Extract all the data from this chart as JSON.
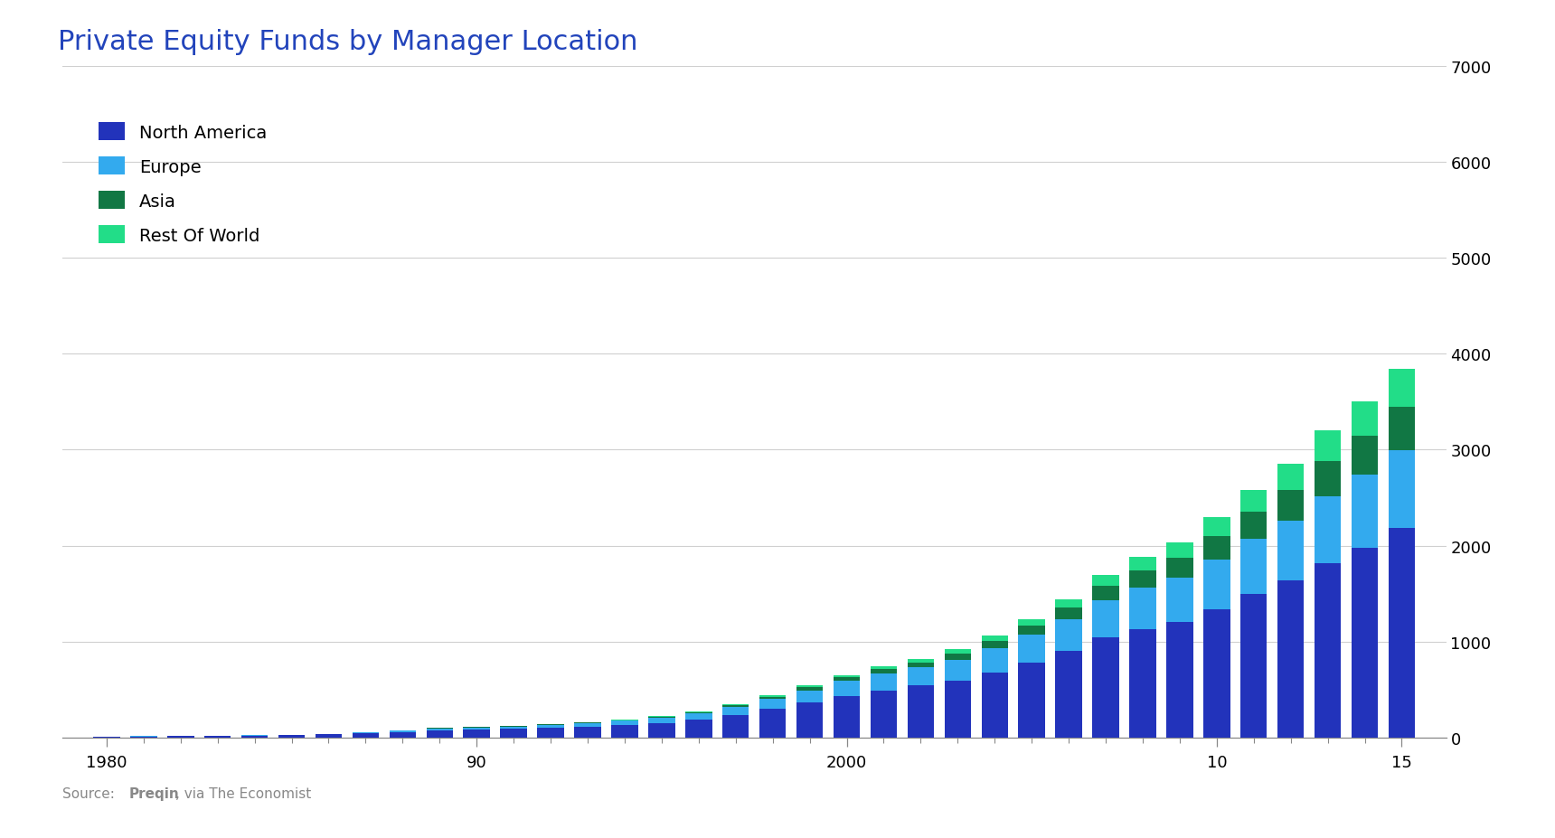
{
  "title": "Private Equity Funds by Manager Location",
  "source_normal": "Source: ",
  "source_bold": "Preqin",
  "source_normal2": ", via The Economist",
  "years": [
    1980,
    1981,
    1982,
    1983,
    1984,
    1985,
    1986,
    1987,
    1988,
    1989,
    1990,
    1991,
    1992,
    1993,
    1994,
    1995,
    1996,
    1997,
    1998,
    1999,
    2000,
    2001,
    2002,
    2003,
    2004,
    2005,
    2006,
    2007,
    2008,
    2009,
    2010,
    2011,
    2012,
    2013,
    2014,
    2015
  ],
  "north_america": [
    8,
    10,
    12,
    15,
    18,
    22,
    30,
    42,
    55,
    72,
    80,
    88,
    98,
    110,
    128,
    150,
    185,
    235,
    295,
    360,
    430,
    490,
    540,
    595,
    680,
    780,
    900,
    1040,
    1130,
    1200,
    1340,
    1500,
    1640,
    1820,
    1980,
    2180
  ],
  "europe": [
    1,
    2,
    2,
    3,
    4,
    5,
    7,
    10,
    14,
    20,
    22,
    26,
    30,
    36,
    44,
    54,
    66,
    84,
    105,
    130,
    156,
    176,
    192,
    214,
    248,
    288,
    332,
    388,
    432,
    462,
    514,
    568,
    618,
    696,
    756,
    812
  ],
  "asia": [
    0,
    0,
    0,
    0,
    0,
    1,
    1,
    2,
    3,
    4,
    4,
    5,
    6,
    7,
    8,
    10,
    13,
    18,
    24,
    32,
    38,
    44,
    50,
    62,
    76,
    95,
    120,
    152,
    182,
    210,
    244,
    282,
    322,
    366,
    410,
    452
  ],
  "rest_of_world": [
    0,
    0,
    0,
    0,
    0,
    0,
    0,
    1,
    1,
    2,
    2,
    2,
    3,
    4,
    5,
    6,
    8,
    10,
    14,
    20,
    26,
    32,
    38,
    48,
    58,
    72,
    90,
    116,
    140,
    164,
    196,
    234,
    272,
    316,
    358,
    400
  ],
  "colors": {
    "north_america": "#2233bb",
    "europe": "#33aaee",
    "asia": "#117744",
    "rest_of_world": "#22dd88"
  },
  "ylim": [
    0,
    7000
  ],
  "yticks": [
    0,
    1000,
    2000,
    3000,
    4000,
    5000,
    6000,
    7000
  ],
  "background_color": "#ffffff",
  "title_color": "#2244bb",
  "title_fontsize": 22,
  "legend_fontsize": 14,
  "axis_fontsize": 13,
  "grid_color": "#d0d0d0",
  "tick_color": "#888888"
}
